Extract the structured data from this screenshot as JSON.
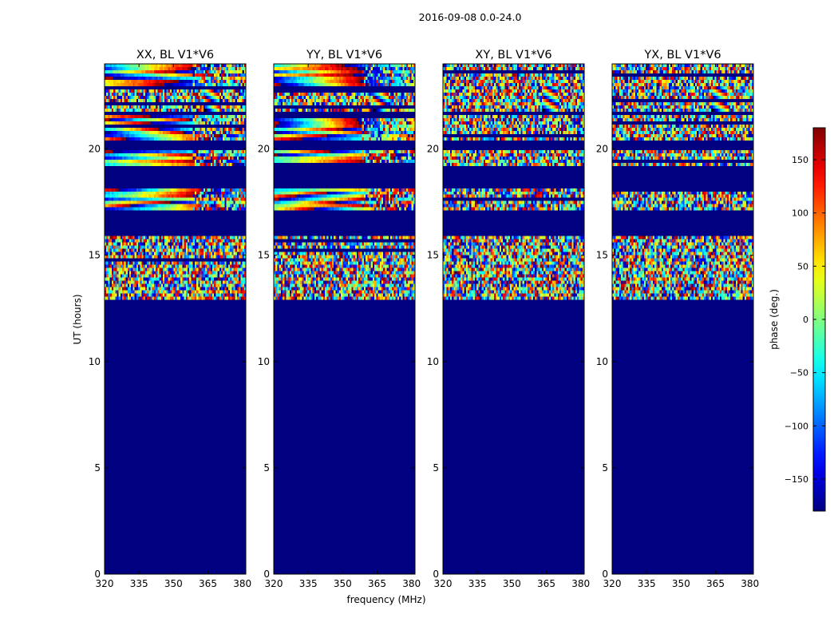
{
  "figure": {
    "suptitle": "2016-09-08 0.0-24.0",
    "xlabel": "frequency (MHz)",
    "ylabel": "UT (hours)"
  },
  "chart_data": {
    "type": "heatmap",
    "title": "2016-09-08 0.0-24.0",
    "xlabel": "frequency (MHz)",
    "ylabel": "UT (hours)",
    "xlim": [
      320,
      381.5
    ],
    "ylim": [
      0,
      24
    ],
    "xticks": [
      320,
      335,
      350,
      365,
      380
    ],
    "yticks": [
      0,
      5,
      10,
      15,
      20
    ],
    "colormap": "jet",
    "background_color": "#000080",
    "panels": [
      {
        "title": "XX, BL V1*V6",
        "seed": 11,
        "smooth": true
      },
      {
        "title": "YY, BL V1*V6",
        "seed": 23,
        "smooth": true
      },
      {
        "title": "XY, BL V1*V6",
        "seed": 37,
        "smooth": false
      },
      {
        "title": "YX, BL V1*V6",
        "seed": 53,
        "smooth": false
      }
    ],
    "bands": [
      {
        "t0": 23.0,
        "t1": 24.0,
        "kind": "smooth"
      },
      {
        "t0": 21.8,
        "t1": 22.9,
        "kind": "noise",
        "fringe_at": 365
      },
      {
        "t0": 20.4,
        "t1": 21.6,
        "kind": "smooth"
      },
      {
        "t0": 19.2,
        "t1": 19.9,
        "kind": "smooth"
      },
      {
        "t0": 17.1,
        "t1": 18.2,
        "kind": "smooth"
      },
      {
        "t0": 12.9,
        "t1": 15.9,
        "kind": "noise"
      }
    ],
    "colorbar": {
      "label": "phase (deg.)",
      "range": [
        -180,
        180
      ],
      "ticks": [
        -150,
        -100,
        -50,
        0,
        50,
        100,
        150
      ]
    }
  }
}
